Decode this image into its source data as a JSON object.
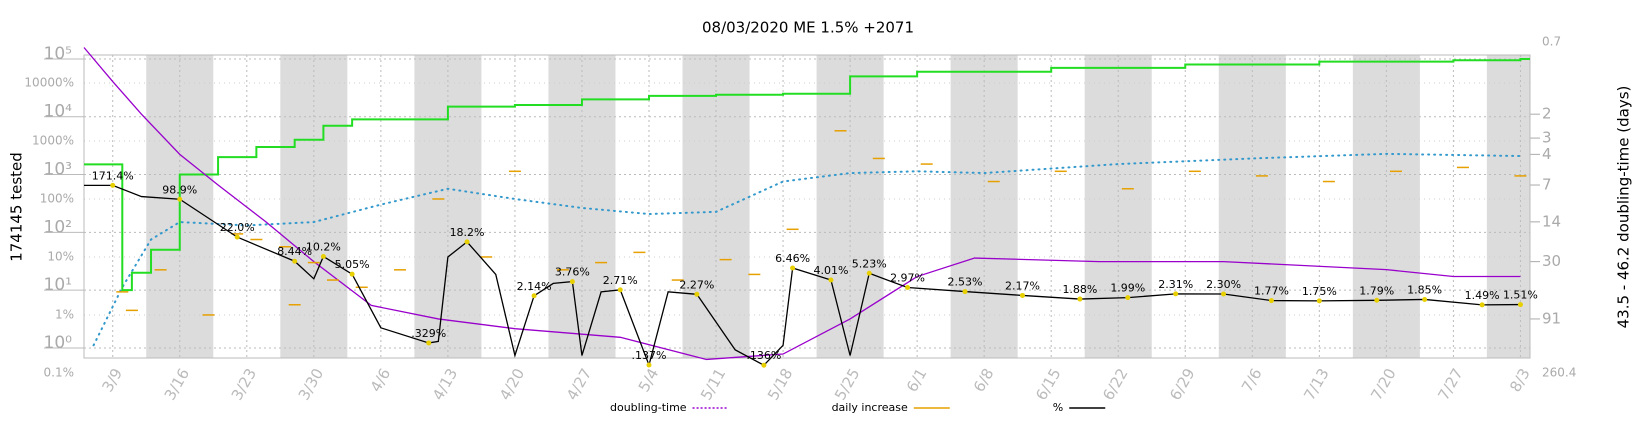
{
  "chart_data": {
    "type": "line",
    "title": "08/03/2020 ME 1.5% +2071",
    "y_label": "174145 tested",
    "y2_label": "43.5 - 46.2 doubling-time (days)",
    "xlim": [
      "2020-03-06",
      "2020-08-04"
    ],
    "xticks": [
      {
        "value": "2020-03-09",
        "label": "3/9"
      },
      {
        "value": "2020-03-16",
        "label": "3/16"
      },
      {
        "value": "2020-03-23",
        "label": "3/23"
      },
      {
        "value": "2020-03-30",
        "label": "3/30"
      },
      {
        "value": "2020-04-06",
        "label": "4/6"
      },
      {
        "value": "2020-04-13",
        "label": "4/13"
      },
      {
        "value": "2020-04-20",
        "label": "4/20"
      },
      {
        "value": "2020-04-27",
        "label": "4/27"
      },
      {
        "value": "2020-05-04",
        "label": "5/4"
      },
      {
        "value": "2020-05-11",
        "label": "5/11"
      },
      {
        "value": "2020-05-18",
        "label": "5/18"
      },
      {
        "value": "2020-05-25",
        "label": "5/25"
      },
      {
        "value": "2020-06-01",
        "label": "6/1"
      },
      {
        "value": "2020-06-08",
        "label": "6/8"
      },
      {
        "value": "2020-06-15",
        "label": "6/15"
      },
      {
        "value": "2020-06-22",
        "label": "6/22"
      },
      {
        "value": "2020-06-29",
        "label": "6/29"
      },
      {
        "value": "2020-07-06",
        "label": "7/6"
      },
      {
        "value": "2020-07-13",
        "label": "7/13"
      },
      {
        "value": "2020-07-20",
        "label": "7/20"
      },
      {
        "value": "2020-07-27",
        "label": "7/27"
      },
      {
        "value": "2020-08-03",
        "label": "8/3"
      }
    ],
    "log_y": true,
    "ylim": [
      0.67,
      117000
    ],
    "yticks": [
      {
        "value": 1,
        "label": "10⁰"
      },
      {
        "value": 10,
        "label": "10¹"
      },
      {
        "value": 100,
        "label": "10²"
      },
      {
        "value": 1000,
        "label": "10³"
      },
      {
        "value": 10000,
        "label": "10⁴"
      },
      {
        "value": 100000,
        "label": "10⁵"
      }
    ],
    "pct_lim": [
      0.181,
      30400
    ],
    "pct_ticks": [
      {
        "value": 0.1,
        "label": "0.1%"
      },
      {
        "value": 1,
        "label": "1%"
      },
      {
        "value": 10,
        "label": "10%"
      },
      {
        "value": 100,
        "label": "100%"
      },
      {
        "value": 1000,
        "label": "1000%"
      },
      {
        "value": 10000,
        "label": "10000%"
      }
    ],
    "y2lim": [
      0.7,
      260.4
    ],
    "y2ticks": [
      0.7,
      2,
      3,
      4,
      7,
      14,
      30,
      91,
      260.4
    ],
    "grid": true,
    "series": [
      {
        "name": "doubling-time",
        "color": "#9900cc",
        "axis": "y2",
        "style": "dotted",
        "x": [
          "2020-03-06",
          "2020-03-09",
          "2020-03-12",
          "2020-03-16",
          "2020-03-20",
          "2020-03-25",
          "2020-03-30",
          "2020-04-05",
          "2020-04-12",
          "2020-04-20",
          "2020-05-01",
          "2020-05-10",
          "2020-05-18",
          "2020-05-25",
          "2020-06-01",
          "2020-06-07",
          "2020-06-20",
          "2020-07-03",
          "2020-07-20",
          "2020-07-27",
          "2020-08-03"
        ],
        "values": [
          0.75,
          1.2,
          2,
          4,
          7,
          14,
          30,
          70,
          91,
          110,
          130,
          200,
          180,
          91,
          40,
          28,
          30,
          30,
          35,
          40,
          40
        ]
      },
      {
        "name": "daily increase",
        "color": "#e6a000",
        "axis": "pct",
        "style": "dash",
        "x": [
          "2020-03-10",
          "2020-03-11",
          "2020-03-14",
          "2020-03-19",
          "2020-03-22",
          "2020-03-24",
          "2020-03-27",
          "2020-03-28",
          "2020-03-30",
          "2020-04-01",
          "2020-04-04",
          "2020-04-08",
          "2020-04-12",
          "2020-04-17",
          "2020-04-20",
          "2020-04-25",
          "2020-04-29",
          "2020-05-03",
          "2020-05-07",
          "2020-05-12",
          "2020-05-15",
          "2020-05-19",
          "2020-05-24",
          "2020-05-28",
          "2020-06-02",
          "2020-06-09",
          "2020-06-16",
          "2020-06-23",
          "2020-06-30",
          "2020-07-07",
          "2020-07-14",
          "2020-07-21",
          "2020-07-28",
          "2020-08-03"
        ],
        "values": [
          2.5,
          1.2,
          6,
          1,
          25,
          20,
          15,
          1.5,
          8,
          4,
          3,
          6,
          100,
          10,
          300,
          6,
          8,
          12,
          4,
          9,
          5,
          30,
          1500,
          500,
          400,
          200,
          300,
          150,
          300,
          250,
          200,
          300,
          350,
          250
        ]
      },
      {
        "name": "%",
        "color": "#000000",
        "axis": "pct",
        "style": "solid",
        "x": [
          "2020-03-06",
          "2020-03-09",
          "2020-03-12",
          "2020-03-16",
          "2020-03-22",
          "2020-03-28",
          "2020-03-30",
          "2020-03-31",
          "2020-04-03",
          "2020-04-06",
          "2020-04-11",
          "2020-04-12",
          "2020-04-13",
          "2020-04-15",
          "2020-04-18",
          "2020-04-20",
          "2020-04-22",
          "2020-04-24",
          "2020-04-26",
          "2020-04-27",
          "2020-04-29",
          "2020-05-01",
          "2020-05-04",
          "2020-05-06",
          "2020-05-09",
          "2020-05-13",
          "2020-05-16",
          "2020-05-18",
          "2020-05-19",
          "2020-05-23",
          "2020-05-25",
          "2020-05-27",
          "2020-05-31",
          "2020-06-06",
          "2020-06-12",
          "2020-06-18",
          "2020-06-23",
          "2020-06-28",
          "2020-07-03",
          "2020-07-08",
          "2020-07-13",
          "2020-07-19",
          "2020-07-24",
          "2020-07-30",
          "2020-08-03"
        ],
        "values": [
          171.4,
          171.4,
          110,
          98.9,
          22.0,
          8.44,
          4.2,
          10.2,
          5.05,
          0.6,
          0.329,
          0.35,
          10,
          18.2,
          5,
          0.2,
          2.14,
          3.5,
          3.76,
          0.2,
          2.5,
          2.71,
          0.137,
          2.5,
          2.27,
          0.25,
          0.136,
          0.3,
          6.46,
          4.01,
          0.2,
          5.23,
          2.97,
          2.53,
          2.17,
          1.88,
          1.99,
          2.31,
          2.3,
          1.77,
          1.75,
          1.79,
          1.85,
          1.49,
          1.51
        ],
        "value_labels": [
          null,
          "171.4%",
          null,
          "98.9%",
          "22.0%",
          "8.44%",
          null,
          "10.2%",
          "5.05%",
          null,
          ".329%",
          null,
          null,
          "18.2%",
          null,
          null,
          "2.14%",
          null,
          "3.76%",
          null,
          null,
          "2.71%",
          ".137%",
          null,
          "2.27%",
          null,
          ".136%",
          null,
          "6.46%",
          "4.01%",
          null,
          "5.23%",
          "2.97%",
          "2.53%",
          "2.17%",
          "1.88%",
          "1.99%",
          "2.31%",
          "2.30%",
          "1.77%",
          "1.75%",
          "1.79%",
          "1.85%",
          "1.49%",
          "1.51%"
        ]
      }
    ],
    "tested": {
      "color": "#22dd22",
      "x": [
        "2020-03-06",
        "2020-03-10",
        "2020-03-11",
        "2020-03-13",
        "2020-03-16",
        "2020-03-20",
        "2020-03-24",
        "2020-03-28",
        "2020-03-31",
        "2020-04-03",
        "2020-04-13",
        "2020-04-20",
        "2020-04-27",
        "2020-05-04",
        "2020-05-11",
        "2020-05-18",
        "2020-05-25",
        "2020-06-01",
        "2020-06-15",
        "2020-06-29",
        "2020-07-13",
        "2020-07-27",
        "2020-08-03"
      ],
      "values": [
        1500,
        10,
        20,
        50,
        1000,
        2000,
        3000,
        4000,
        7000,
        9000,
        15000,
        16000,
        20000,
        23000,
        24000,
        25000,
        50000,
        60000,
        70000,
        80000,
        90000,
        95000,
        100000
      ]
    },
    "trend": {
      "color": "#3399cc",
      "axis": "pct",
      "x": [
        "2020-03-07",
        "2020-03-10",
        "2020-03-13",
        "2020-03-16",
        "2020-03-23",
        "2020-03-30",
        "2020-04-06",
        "2020-04-13",
        "2020-04-20",
        "2020-04-27",
        "2020-05-04",
        "2020-05-11",
        "2020-05-18",
        "2020-05-25",
        "2020-06-01",
        "2020-06-08",
        "2020-06-22",
        "2020-07-06",
        "2020-07-20",
        "2020-08-03"
      ],
      "values": [
        0.3,
        3,
        20,
        40,
        35,
        40,
        80,
        150,
        100,
        70,
        55,
        60,
        200,
        280,
        300,
        280,
        400,
        500,
        600,
        550
      ]
    }
  }
}
